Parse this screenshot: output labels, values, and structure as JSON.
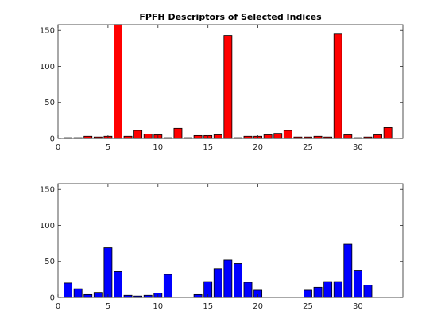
{
  "chart_data": [
    {
      "type": "bar",
      "title": "FPFH Descriptors of Selected Indices",
      "xlabel": "",
      "ylabel": "",
      "color": "#ff0000",
      "x": [
        1,
        2,
        3,
        4,
        5,
        6,
        7,
        8,
        9,
        10,
        11,
        12,
        13,
        14,
        15,
        16,
        17,
        18,
        19,
        20,
        21,
        22,
        23,
        24,
        25,
        26,
        27,
        28,
        29,
        30,
        31,
        32,
        33
      ],
      "values": [
        1,
        1,
        3,
        2,
        3,
        158,
        3,
        11,
        6,
        5,
        1,
        14,
        1,
        4,
        4,
        5,
        143,
        1,
        3,
        3,
        5,
        7,
        11,
        2,
        2,
        3,
        2,
        145,
        5,
        1,
        2,
        5,
        15
      ],
      "xlim": [
        0,
        34.5
      ],
      "ylim": [
        0,
        158
      ],
      "xticks": [
        0,
        5,
        10,
        15,
        20,
        25,
        30
      ],
      "yticks": [
        0,
        50,
        100,
        150
      ],
      "grid": false
    },
    {
      "type": "bar",
      "title": "",
      "xlabel": "",
      "ylabel": "",
      "color": "#0000ff",
      "x": [
        1,
        2,
        3,
        4,
        5,
        6,
        7,
        8,
        9,
        10,
        11,
        12,
        13,
        14,
        15,
        16,
        17,
        18,
        19,
        20,
        21,
        22,
        23,
        24,
        25,
        26,
        27,
        28,
        29,
        30,
        31,
        32,
        33
      ],
      "values": [
        20,
        12,
        4,
        7,
        69,
        36,
        3,
        2,
        3,
        6,
        32,
        0,
        0,
        4,
        22,
        40,
        52,
        47,
        21,
        10,
        0,
        0,
        0,
        0,
        10,
        14,
        22,
        22,
        74,
        37,
        17,
        0,
        0
      ],
      "xlim": [
        0,
        34.5
      ],
      "ylim": [
        0,
        158
      ],
      "xticks": [
        0,
        5,
        10,
        15,
        20,
        25,
        30
      ],
      "yticks": [
        0,
        50,
        100,
        150
      ],
      "grid": false
    }
  ]
}
